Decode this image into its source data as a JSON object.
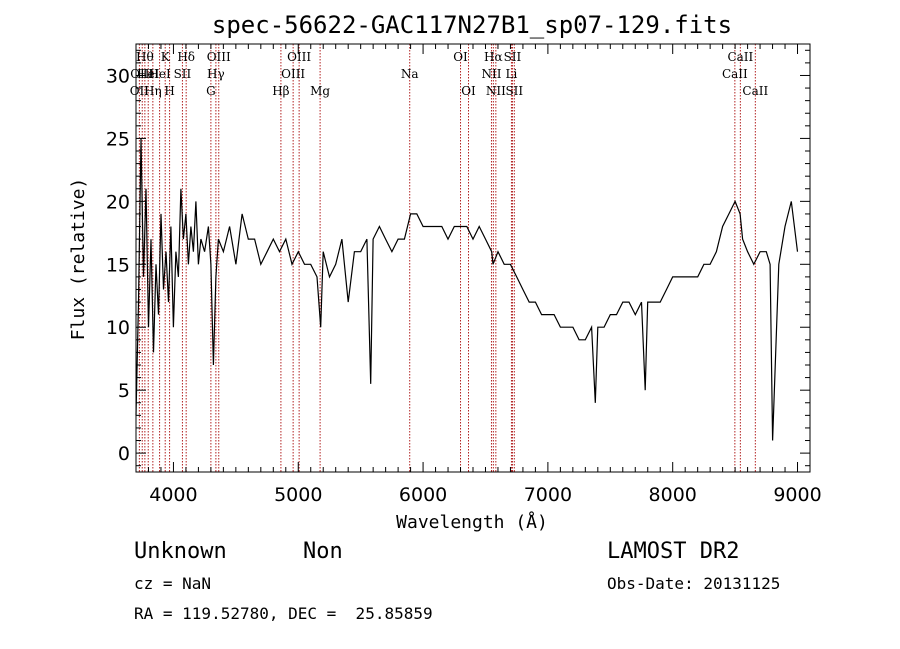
{
  "chart_data": {
    "type": "line",
    "title": "spec-56622-GAC117N27B1_sp07-129.fits",
    "xlabel": "Wavelength (Å)",
    "ylabel": "Flux (relative)",
    "xlim": [
      3700,
      9100
    ],
    "ylim": [
      -1.5,
      32.5
    ],
    "x_ticks": [
      4000,
      5000,
      6000,
      7000,
      8000,
      9000
    ],
    "y_ticks": [
      0,
      5,
      10,
      15,
      20,
      25,
      30
    ],
    "grid": false,
    "series": [
      {
        "x": [
          3700,
          3720,
          3740,
          3760,
          3780,
          3800,
          3820,
          3840,
          3860,
          3880,
          3900,
          3920,
          3940,
          3960,
          3980,
          4000,
          4020,
          4040,
          4060,
          4080,
          4100,
          4120,
          4140,
          4160,
          4180,
          4200,
          4220,
          4250,
          4280,
          4300,
          4320,
          4340,
          4360,
          4400,
          4450,
          4500,
          4550,
          4600,
          4650,
          4700,
          4750,
          4800,
          4850,
          4900,
          4950,
          5000,
          5050,
          5100,
          5150,
          5180,
          5200,
          5250,
          5300,
          5350,
          5400,
          5450,
          5500,
          5550,
          5580,
          5600,
          5650,
          5700,
          5750,
          5800,
          5850,
          5900,
          5950,
          6000,
          6050,
          6100,
          6150,
          6200,
          6250,
          6300,
          6350,
          6400,
          6450,
          6500,
          6550,
          6560,
          6600,
          6650,
          6700,
          6750,
          6800,
          6850,
          6900,
          6950,
          7000,
          7050,
          7100,
          7150,
          7200,
          7250,
          7300,
          7350,
          7380,
          7400,
          7450,
          7500,
          7550,
          7600,
          7650,
          7700,
          7750,
          7780,
          7800,
          7850,
          7900,
          7950,
          8000,
          8050,
          8100,
          8150,
          8200,
          8250,
          8300,
          8350,
          8400,
          8450,
          8500,
          8540,
          8560,
          8600,
          8650,
          8700,
          8750,
          8780,
          8800,
          8850,
          8900,
          8950,
          9000
        ],
        "y": [
          3,
          12,
          25,
          14,
          21,
          10,
          17,
          8,
          15,
          11,
          19,
          13,
          16,
          12,
          18,
          10,
          16,
          14,
          21,
          17,
          19,
          15,
          18,
          16,
          20,
          15,
          17,
          16,
          18,
          15,
          7,
          14,
          17,
          16,
          18,
          15,
          19,
          17,
          17,
          15,
          16,
          17,
          16,
          17,
          15,
          16,
          15,
          15,
          14,
          10,
          16,
          14,
          15,
          17,
          12,
          16,
          16,
          17,
          5.5,
          17,
          18,
          17,
          16,
          17,
          17,
          19,
          19,
          18,
          18,
          18,
          18,
          17,
          18,
          18,
          18,
          17,
          18,
          17,
          16,
          15,
          16,
          15,
          15,
          14,
          13,
          12,
          12,
          11,
          11,
          11,
          10,
          10,
          10,
          9,
          9,
          10,
          4,
          10,
          10,
          11,
          11,
          12,
          12,
          11,
          12,
          5,
          12,
          12,
          12,
          13,
          14,
          14,
          14,
          14,
          14,
          15,
          15,
          16,
          18,
          19,
          20,
          19,
          17,
          16,
          15,
          16,
          16,
          15,
          1,
          15,
          18,
          20,
          16
        ]
      }
    ],
    "line_markers": [
      {
        "wavelength": 3727,
        "label": "OII",
        "row": 3
      },
      {
        "wavelength": 3750,
        "label": "OIII",
        "row": 2
      },
      {
        "wavelength": 3771,
        "label": "Hθ",
        "row": 1
      },
      {
        "wavelength": 3798,
        "label": "HeI",
        "row": 2
      },
      {
        "wavelength": 3835,
        "label": "Hη",
        "row": 3
      },
      {
        "wavelength": 3889,
        "label": "HeI",
        "row": 2
      },
      {
        "wavelength": 3934,
        "label": "K",
        "row": 1
      },
      {
        "wavelength": 3969,
        "label": "H",
        "row": 3
      },
      {
        "wavelength": 4072,
        "label": "SII",
        "row": 2
      },
      {
        "wavelength": 4102,
        "label": "Hδ",
        "row": 1
      },
      {
        "wavelength": 4300,
        "label": "G",
        "row": 3
      },
      {
        "wavelength": 4340,
        "label": "Hγ",
        "row": 2
      },
      {
        "wavelength": 4363,
        "label": "OIII",
        "row": 1
      },
      {
        "wavelength": 4861,
        "label": "Hβ",
        "row": 3
      },
      {
        "wavelength": 4959,
        "label": "OIII",
        "row": 2
      },
      {
        "wavelength": 5007,
        "label": "OIII",
        "row": 1
      },
      {
        "wavelength": 5175,
        "label": "Mg",
        "row": 3
      },
      {
        "wavelength": 5893,
        "label": "Na",
        "row": 2
      },
      {
        "wavelength": 6300,
        "label": "OI",
        "row": 1
      },
      {
        "wavelength": 6364,
        "label": "OI",
        "row": 3
      },
      {
        "wavelength": 6548,
        "label": "NII",
        "row": 2
      },
      {
        "wavelength": 6563,
        "label": "Hα",
        "row": 1
      },
      {
        "wavelength": 6583,
        "label": "NII",
        "row": 3
      },
      {
        "wavelength": 6708,
        "label": "Li",
        "row": 2
      },
      {
        "wavelength": 6716,
        "label": "SII",
        "row": 1
      },
      {
        "wavelength": 6731,
        "label": "SII",
        "row": 3
      },
      {
        "wavelength": 8498,
        "label": "CaII",
        "row": 2
      },
      {
        "wavelength": 8542,
        "label": "CaII",
        "row": 1
      },
      {
        "wavelength": 8662,
        "label": "CaII",
        "row": 3
      }
    ]
  },
  "info": {
    "class": "Unknown",
    "subclass": "Non",
    "survey": "LAMOST DR2",
    "cz": "cz = NaN",
    "obs_date": "Obs-Date: 20131125",
    "coords": "RA = 119.52780, DEC =  25.85859"
  },
  "colors": {
    "spectrum": "#000000",
    "marker_line": "#b22222",
    "background": "#ffffff"
  }
}
